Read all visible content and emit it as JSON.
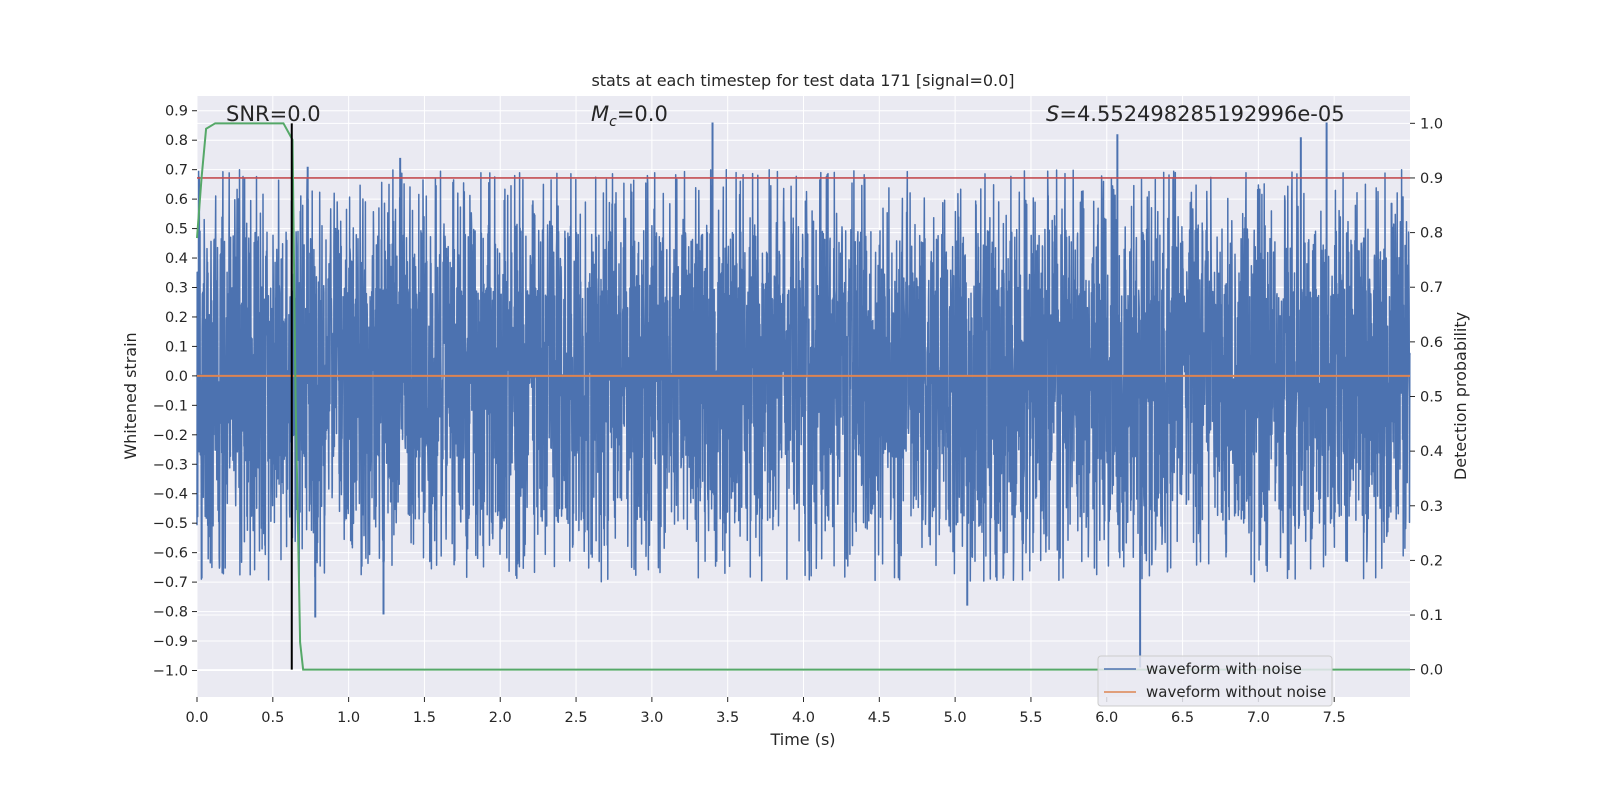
{
  "chart_data": {
    "type": "line",
    "title": "stats at each timestep for test data 171 [signal=0.0]",
    "xlabel": "Time (s)",
    "ylabel_left": "Whitened strain",
    "ylabel_right": "Detection probability",
    "xlim": [
      0.0,
      8.0
    ],
    "ylim_left": [
      -1.09,
      0.95
    ],
    "ylim_right": [
      -0.05,
      1.05
    ],
    "x_ticks": [
      "0.0",
      "0.5",
      "1.0",
      "1.5",
      "2.0",
      "2.5",
      "3.0",
      "3.5",
      "4.0",
      "4.5",
      "5.0",
      "5.5",
      "6.0",
      "6.5",
      "7.0",
      "7.5"
    ],
    "y_ticks_left": [
      "0.9",
      "0.8",
      "0.7",
      "0.6",
      "0.5",
      "0.4",
      "0.3",
      "0.2",
      "0.1",
      "0.0",
      "−0.1",
      "−0.2",
      "−0.3",
      "−0.4",
      "−0.5",
      "−0.6",
      "−0.7",
      "−0.8",
      "−0.9",
      "−1.0"
    ],
    "y_ticks_right": [
      "1.0",
      "0.9",
      "0.8",
      "0.7",
      "0.6",
      "0.5",
      "0.4",
      "0.3",
      "0.2",
      "0.1",
      "0.0"
    ],
    "grid": true,
    "legend_position": "lower-right",
    "annotations": {
      "snr": "SNR=0.0",
      "mc_symbol": "M",
      "mc_sub": "c",
      "mc_value": "=0.0",
      "s_symbol": "S",
      "s_value": "=4.552498285192996e-05"
    },
    "series": [
      {
        "name": "waveform with noise",
        "axis": "left",
        "color": "#4c72b0",
        "style": "dense noise",
        "typical_range": [
          -0.28,
          0.3
        ],
        "notable_peaks": [
          {
            "x": 3.4,
            "y": 0.86
          },
          {
            "x": 6.07,
            "y": 0.82
          },
          {
            "x": 7.45,
            "y": 0.86
          },
          {
            "x": 7.28,
            "y": 0.81
          },
          {
            "x": 1.34,
            "y": 0.74
          },
          {
            "x": 0.73,
            "y": 0.71
          },
          {
            "x": 6.22,
            "y": -0.99
          },
          {
            "x": 0.78,
            "y": -0.82
          },
          {
            "x": 1.23,
            "y": -0.81
          },
          {
            "x": 5.08,
            "y": -0.78
          }
        ]
      },
      {
        "name": "waveform without noise",
        "axis": "left",
        "color": "#dd8452",
        "x": [
          0.0,
          8.0
        ],
        "y": [
          0.0,
          0.0
        ]
      },
      {
        "name": "",
        "axis": "right",
        "color": "#55a868",
        "x": [
          0.0,
          0.03,
          0.06,
          0.12,
          0.2,
          0.5,
          0.57,
          0.63,
          0.65,
          0.68,
          0.7,
          8.0
        ],
        "y": [
          0.79,
          0.9,
          0.99,
          1.0,
          1.0,
          1.0,
          1.0,
          0.97,
          0.5,
          0.05,
          0.0,
          0.0
        ]
      }
    ],
    "threshold_line": {
      "axis": "right",
      "y": 0.9,
      "color": "#c44e52"
    },
    "vertical_marker": {
      "x": 0.625,
      "y_range_right": [
        0.0,
        1.0
      ],
      "color": "#000000"
    }
  },
  "colors": {
    "axes_background": "#eaeaf2",
    "grid": "#ffffff",
    "text": "#262626"
  }
}
